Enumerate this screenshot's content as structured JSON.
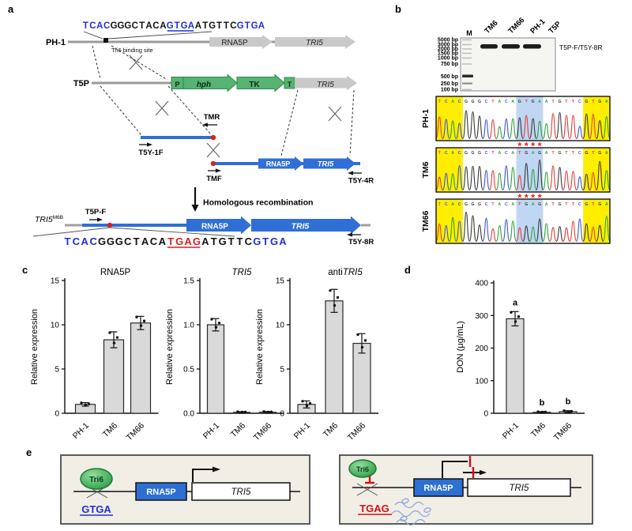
{
  "panel_letters": {
    "a": "a",
    "b": "b",
    "c": "c",
    "d": "d",
    "e": "e"
  },
  "panel_a": {
    "strain_wt": "PH-1",
    "construct": "T5P",
    "tri6_site_label": "Tri6 binding site",
    "rna5p": "RNA5P",
    "tri5": "TRI5",
    "p": "P",
    "hph": "hph",
    "tk": "TK",
    "t": "T",
    "primers": {
      "tmr": "TMR",
      "t5y1f": "T5Y-1F",
      "tmf": "TMF",
      "t5y4r": "T5Y-4R",
      "t5pf": "T5P-F",
      "t5y8r": "T5Y-8R"
    },
    "recomb_label": "Homologous recombination",
    "product": {
      "base": "TRI5",
      "sup": "M6B"
    },
    "seq_wt": [
      {
        "text": "TCAC",
        "color": "#2230cf",
        "underline": false
      },
      {
        "text": "GGGCTACA",
        "color": "#111111",
        "underline": false
      },
      {
        "text": "GTGA",
        "color": "#2230cf",
        "underline": true
      },
      {
        "text": "ATGTTC",
        "color": "#111111",
        "underline": false
      },
      {
        "text": "GTGA",
        "color": "#2230cf",
        "underline": false
      }
    ],
    "seq_mut": [
      {
        "text": "TCAC",
        "color": "#2230cf",
        "underline": false
      },
      {
        "text": "GGGCTACA",
        "color": "#111111",
        "underline": false
      },
      {
        "text": "TGAG",
        "color": "#d42027",
        "underline": true
      },
      {
        "text": "ATGTTC",
        "color": "#111111",
        "underline": false
      },
      {
        "text": "GTGA",
        "color": "#2230cf",
        "underline": false
      }
    ]
  },
  "panel_b": {
    "gel": {
      "marker_lane": "M",
      "sample_lanes": [
        "TM6",
        "TM66",
        "PH-1",
        "T5P"
      ],
      "marker_labels": [
        "5000 bp",
        "3000 bp",
        "2000 bp",
        "1500 bp",
        "1000 bp",
        "750 bp",
        "500 bp",
        "250 bp",
        "100 bp"
      ],
      "band_label": "T5P-F/T5Y-8R"
    },
    "chromatograms": [
      {
        "label": "PH-1",
        "seq": "TCACGGGCTACAGTGAATGTTCGTGA"
      },
      {
        "label": "TM6",
        "seq": "TCACGGGCTACATGAGATGTTCGTGA"
      },
      {
        "label": "TM66",
        "seq": "TCACGGGCTACATGAGATGTTCGTGA"
      }
    ],
    "asterisk": "*",
    "base_colors": {
      "A": "#2fa43c",
      "C": "#3c58d6",
      "G": "#3a3a3a",
      "T": "#e0413c"
    },
    "highlight_colors": {
      "yellow": "#ffee00",
      "blue": "#b9d3f2"
    }
  },
  "chart_data": [
    {
      "type": "bar",
      "title_parts": [
        {
          "text": "RNA5P",
          "italic": false
        }
      ],
      "ylabel": "Relative expression",
      "categories": [
        "PH-1",
        "TM6",
        "TM66"
      ],
      "values": [
        1.0,
        8.3,
        10.2
      ],
      "errors": [
        0.2,
        0.9,
        0.75
      ],
      "ylim": [
        0,
        15
      ],
      "yticks": [
        "0",
        "5",
        "10",
        "15"
      ],
      "bar_fill": "#d9d9d9"
    },
    {
      "type": "bar",
      "title_parts": [
        {
          "text": "TRI5",
          "italic": true
        }
      ],
      "ylabel": "Relative expression",
      "categories": [
        "PH-1",
        "TM6",
        "TM66"
      ],
      "values": [
        1.0,
        0.01,
        0.012
      ],
      "errors": [
        0.07,
        0.008,
        0.008
      ],
      "ylim": [
        0,
        1.5
      ],
      "yticks": [
        "0.0",
        "0.5",
        "1.0",
        "1.5"
      ],
      "bar_fill": "#d9d9d9"
    },
    {
      "type": "bar",
      "title_parts": [
        {
          "text": "anti",
          "italic": false
        },
        {
          "text": "TRI5",
          "italic": true
        }
      ],
      "ylabel": "Relative expression",
      "categories": [
        "PH-1",
        "TM6",
        "TM66"
      ],
      "values": [
        1.0,
        12.7,
        7.9
      ],
      "errors": [
        0.4,
        1.3,
        1.1
      ],
      "ylim": [
        0,
        15
      ],
      "yticks": [
        "0",
        "5",
        "10",
        "15"
      ],
      "bar_fill": "#d9d9d9"
    },
    {
      "type": "bar",
      "title_parts": [],
      "ylabel": "DON (μg/mL)",
      "categories": [
        "PH-1",
        "TM6",
        "TM66"
      ],
      "values": [
        290,
        3,
        5
      ],
      "errors": [
        22,
        2,
        3
      ],
      "ylim": [
        0,
        400
      ],
      "yticks": [
        "0",
        "100",
        "200",
        "300",
        "400"
      ],
      "sig_letters": [
        "a",
        "b",
        "b"
      ],
      "bar_fill": "#d9d9d9"
    }
  ],
  "panel_e": {
    "left": {
      "tri6": "Tri6",
      "site": "GTGA",
      "rna5p": "RNA5P",
      "tri5": "TRI5"
    },
    "right": {
      "tri6": "Tri6",
      "site": "TGAG",
      "rna5p": "RNA5P",
      "tri5": "TRI5"
    }
  },
  "colors": {
    "blue_element": "#2d6fd2",
    "green_element": "#56b371",
    "gray_element": "#c9c9c9",
    "red_accent": "#d42027",
    "seq_blue": "#2230cf",
    "box_bg": "#f1eee6"
  }
}
